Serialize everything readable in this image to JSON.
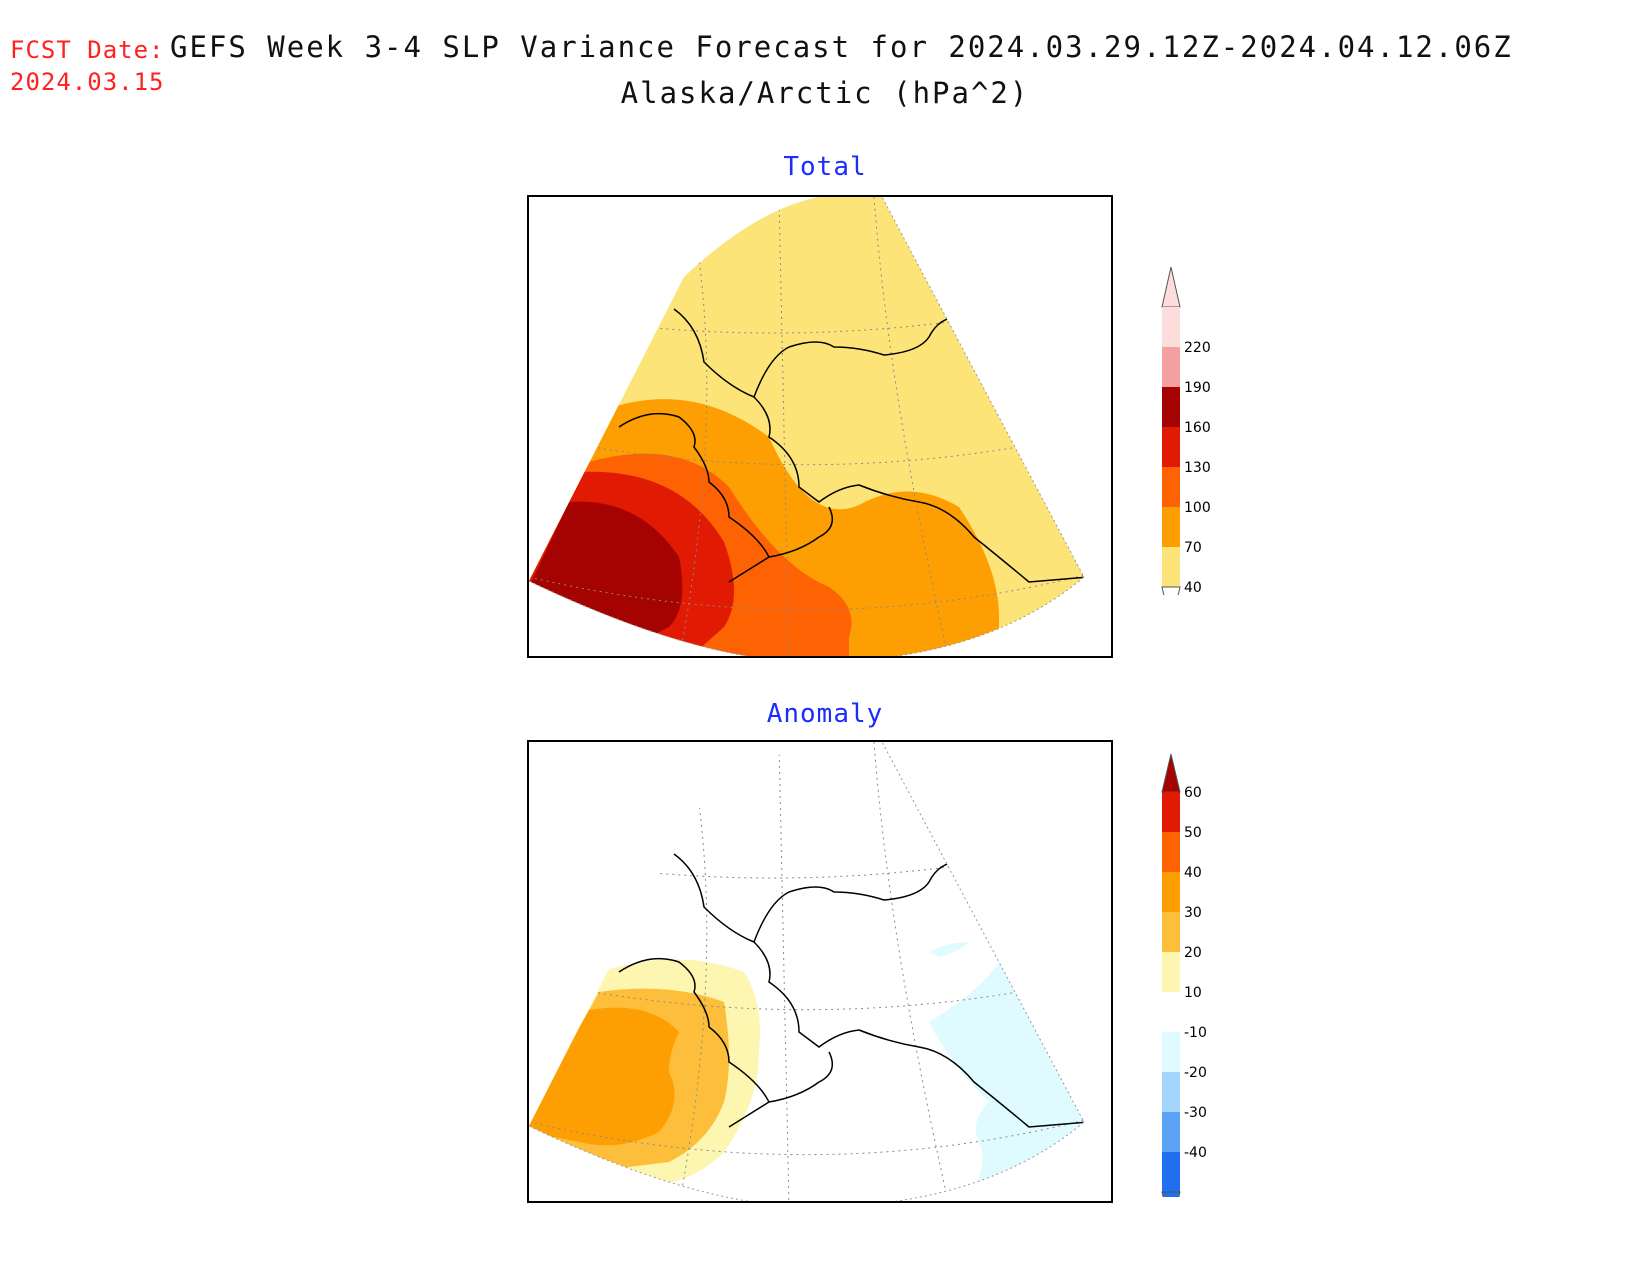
{
  "header": {
    "fcst_label": "FCST Date:",
    "fcst_date": "2024.03.15",
    "title": "GEFS Week 3-4 SLP Variance Forecast for 2024.03.29.12Z-2024.04.12.06Z",
    "subtitle": "Alaska/Arctic (hPa^2)"
  },
  "panels": [
    {
      "title": "Total",
      "colorbar": {
        "levels": [
          "40",
          "70",
          "100",
          "130",
          "160",
          "190",
          "220"
        ],
        "colors": [
          "#fde479",
          "#fd9f03",
          "#fd6203",
          "#e11a03",
          "#a50202",
          "#f4a0a0",
          "#fddcdc"
        ],
        "under_color": "#ffffff",
        "over_color": "#fddcdc"
      }
    },
    {
      "title": "Anomaly",
      "colorbar": {
        "levels": [
          "-40",
          "-30",
          "-20",
          "-10",
          "10",
          "20",
          "30",
          "40",
          "50",
          "60"
        ],
        "colors": [
          "#1f6ff0",
          "#5aa3f5",
          "#a3d4fb",
          "#e0fbff",
          "#ffffff",
          "#fdf6b0",
          "#fdbf3b",
          "#fd9f03",
          "#fd6203",
          "#e11a03"
        ],
        "under_color": "#1f6ff0",
        "over_color": "#a50202"
      }
    }
  ]
}
